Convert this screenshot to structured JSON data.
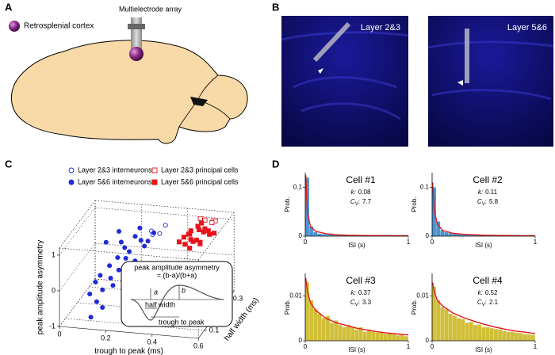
{
  "panel_labels": [
    "A",
    "B",
    "C",
    "D"
  ],
  "panel_a": {
    "electrode_label": "Multielectrode array",
    "region_label": "Retrosplenial cortex"
  },
  "panel_b": {
    "images": [
      {
        "label": "Layer 2&3"
      },
      {
        "label": "Layer 5&6"
      }
    ]
  },
  "chart_data": [
    {
      "type": "scatter3d",
      "xlabel": "trough to peak (ms)",
      "ylabel": "peak amplitude asymmetry",
      "zlabel": "half width (ms)",
      "xlim": [
        0,
        0.6
      ],
      "ylim": [
        -1,
        1.2
      ],
      "zlim": [
        0.05,
        0.35
      ],
      "xticks": [
        0,
        0.2,
        0.4,
        0.6
      ],
      "yticks": [
        -1,
        0,
        1
      ],
      "zticks": [
        0.1,
        0.2,
        0.3
      ],
      "series": [
        {
          "name": "Layer 2&3 interneurons",
          "color": "#1f2bd6",
          "marker": "circle",
          "filled": false,
          "x": [
            0.3,
            0.33,
            0.35,
            0.25,
            0.28,
            0.31
          ],
          "y": [
            1.0,
            0.9,
            1.1,
            0.3,
            0.2,
            0.95
          ],
          "z": [
            0.24,
            0.25,
            0.26,
            0.18,
            0.17,
            0.23
          ]
        },
        {
          "name": "Layer 5&6 interneurons",
          "color": "#1f2bd6",
          "marker": "circle",
          "filled": true,
          "x": [
            0.15,
            0.2,
            0.18,
            0.22,
            0.25,
            0.28,
            0.3,
            0.32,
            0.2,
            0.17,
            0.14,
            0.12,
            0.1,
            0.16,
            0.24,
            0.27,
            0.21,
            0.19,
            0.13,
            0.11,
            0.26,
            0.29,
            0.23,
            0.18,
            0.15
          ],
          "y": [
            1.0,
            0.9,
            1.1,
            0.8,
            1.0,
            0.95,
            0.85,
            1.05,
            0.6,
            0.4,
            0.2,
            0.0,
            -0.3,
            -0.6,
            0.7,
            0.5,
            0.3,
            -0.1,
            -0.5,
            -0.9,
            1.15,
            0.75,
            0.55,
            0.1,
            -0.2
          ],
          "z": [
            0.15,
            0.18,
            0.2,
            0.17,
            0.2,
            0.19,
            0.21,
            0.22,
            0.15,
            0.14,
            0.12,
            0.12,
            0.11,
            0.1,
            0.17,
            0.16,
            0.14,
            0.13,
            0.11,
            0.1,
            0.22,
            0.2,
            0.16,
            0.13,
            0.12
          ]
        },
        {
          "name": "Layer 2&3 principal cells",
          "color": "#e8141c",
          "marker": "square",
          "filled": false,
          "x": [
            0.5,
            0.53,
            0.55,
            0.48,
            0.52
          ],
          "y": [
            1.15,
            1.1,
            1.2,
            1.18,
            1.0
          ],
          "z": [
            0.3,
            0.31,
            0.29,
            0.3,
            0.32
          ]
        },
        {
          "name": "Layer 5&6 principal cells",
          "color": "#e8141c",
          "marker": "square",
          "filled": true,
          "x": [
            0.45,
            0.47,
            0.5,
            0.52,
            0.48,
            0.46,
            0.49,
            0.51,
            0.53,
            0.55,
            0.44,
            0.47,
            0.5,
            0.52,
            0.48,
            0.46,
            0.54,
            0.49,
            0.51,
            0.5
          ],
          "y": [
            1.0,
            1.1,
            0.9,
            1.05,
            0.95,
            0.85,
            1.15,
            0.8,
            1.0,
            0.9,
            0.95,
            1.05,
            1.1,
            0.85,
            0.75,
            1.0,
            0.95,
            0.9,
            1.0,
            1.2
          ],
          "z": [
            0.22,
            0.24,
            0.23,
            0.25,
            0.22,
            0.21,
            0.26,
            0.24,
            0.27,
            0.28,
            0.2,
            0.23,
            0.25,
            0.22,
            0.21,
            0.24,
            0.26,
            0.22,
            0.28,
            0.27
          ]
        }
      ],
      "inset": {
        "title": "peak amplitude asymmetry",
        "formula": "= (b-a)/(b+a)",
        "a": "a",
        "b": "b",
        "half_width": "half width",
        "trough_to_peak": "trough to peak"
      }
    },
    {
      "type": "histogram",
      "xlabel": "ISI (s)",
      "ylabel": "Prob.",
      "xlim": [
        0,
        1
      ],
      "xticks": [
        0,
        1
      ],
      "k_label": "k:",
      "cv_label": "C",
      "cv_sub": "V",
      "cv_colon": ":",
      "bins": [
        0,
        0.04,
        0.08,
        0.12,
        0.16,
        0.2,
        0.24,
        0.28,
        0.32,
        0.36,
        0.4,
        0.44,
        0.48,
        0.52,
        0.56,
        0.6,
        0.64,
        0.68,
        0.72,
        0.76,
        0.8,
        0.84,
        0.88,
        0.92,
        0.96,
        1
      ],
      "fit_x": [
        0.005,
        0.02,
        0.05,
        0.1,
        0.2,
        0.3,
        0.4,
        0.5,
        0.6,
        0.7,
        0.8,
        0.9,
        1.0
      ],
      "fit_color": "#e31a1c",
      "cells": [
        {
          "title": "Cell #1",
          "k": 0.08,
          "cv": 7.7,
          "color": "#2a7fc8",
          "ylim": [
            0,
            0.13
          ],
          "yticks": [
            0,
            0.1
          ],
          "values": [
            0.12,
            0.02,
            0.008,
            0.005,
            0.004,
            0.003,
            0.003,
            0.002,
            0.002,
            0.002,
            0.002,
            0.001,
            0.001,
            0.001,
            0.001,
            0.001,
            0.001,
            0.001,
            0.001,
            0.001,
            0.001,
            0.001,
            0.001,
            0.001,
            0.001
          ],
          "fit": [
            0.125,
            0.05,
            0.02,
            0.01,
            0.005,
            0.003,
            0.002,
            0.0015,
            0.001,
            0.001,
            0.001,
            0.0008,
            0.0008
          ]
        },
        {
          "title": "Cell #2",
          "k": 0.11,
          "cv": 5.8,
          "color": "#2a7fc8",
          "ylim": [
            0,
            0.13
          ],
          "yticks": [
            0,
            0.1
          ],
          "values": [
            0.1,
            0.03,
            0.012,
            0.008,
            0.006,
            0.005,
            0.004,
            0.003,
            0.003,
            0.003,
            0.002,
            0.002,
            0.002,
            0.002,
            0.002,
            0.001,
            0.001,
            0.001,
            0.001,
            0.001,
            0.001,
            0.001,
            0.001,
            0.001,
            0.001
          ],
          "fit": [
            0.11,
            0.055,
            0.025,
            0.012,
            0.006,
            0.004,
            0.003,
            0.002,
            0.0015,
            0.0012,
            0.001,
            0.0009,
            0.0008
          ]
        },
        {
          "title": "Cell #3",
          "k": 0.37,
          "cv": 3.3,
          "color": "#c8b414",
          "ylim": [
            0,
            0.015
          ],
          "yticks": [
            0,
            0.01
          ],
          "values": [
            0.013,
            0.009,
            0.007,
            0.006,
            0.005,
            0.0055,
            0.004,
            0.0045,
            0.0035,
            0.003,
            0.0035,
            0.003,
            0.0025,
            0.003,
            0.002,
            0.0025,
            0.002,
            0.0018,
            0.002,
            0.0015,
            0.0016,
            0.0014,
            0.0012,
            0.0013,
            0.001
          ],
          "fit": [
            0.014,
            0.011,
            0.0085,
            0.0068,
            0.005,
            0.004,
            0.0034,
            0.0028,
            0.0024,
            0.002,
            0.0017,
            0.0015,
            0.0013
          ]
        },
        {
          "title": "Cell #4",
          "k": 0.52,
          "cv": 2.1,
          "color": "#c8b414",
          "ylim": [
            0,
            0.015
          ],
          "yticks": [
            0,
            0.01
          ],
          "values": [
            0.012,
            0.009,
            0.0075,
            0.007,
            0.006,
            0.0055,
            0.005,
            0.0048,
            0.004,
            0.0042,
            0.0035,
            0.0036,
            0.003,
            0.003,
            0.0028,
            0.0026,
            0.0025,
            0.0022,
            0.002,
            0.002,
            0.0018,
            0.0017,
            0.0015,
            0.0014,
            0.0013
          ],
          "fit": [
            0.013,
            0.011,
            0.009,
            0.0078,
            0.0062,
            0.0052,
            0.0044,
            0.0037,
            0.0031,
            0.0026,
            0.0022,
            0.0019,
            0.0016
          ]
        }
      ]
    }
  ]
}
